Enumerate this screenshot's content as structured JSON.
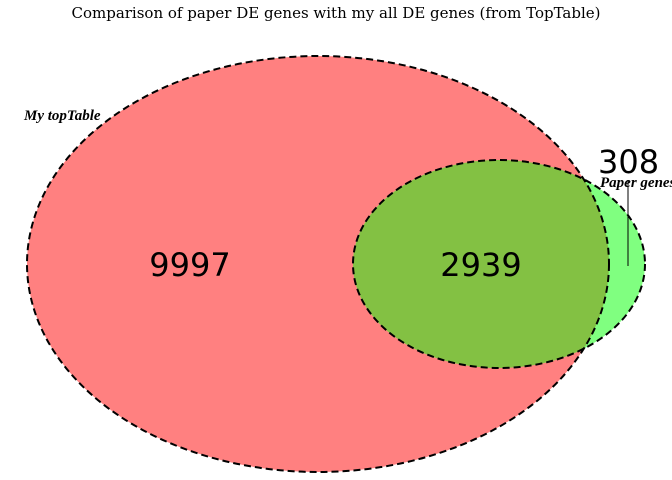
{
  "title": "Comparison of paper DE genes with my all DE genes (from TopTable)",
  "sets": [
    {
      "name": "My topTable",
      "color": "#ff8080"
    },
    {
      "name": "Paper genes",
      "color": "#80ff80"
    }
  ],
  "overlap_color": "#83c143",
  "counts": {
    "only_a": "9997",
    "both": "2939",
    "only_b": "308"
  }
}
